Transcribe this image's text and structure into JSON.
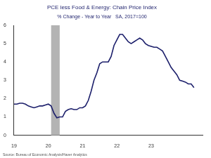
{
  "chart_data": {
    "type": "line",
    "title": "PCE less Food & Energy: Chain Price Index",
    "subtitle": "% Change - Year to Year   SA, 2017=100",
    "source": "Source: Bureau of Economic Analysis/Haver Analytics",
    "x": [
      2019,
      2019.083,
      2019.167,
      2019.25,
      2019.333,
      2019.417,
      2019.5,
      2019.583,
      2019.667,
      2019.75,
      2019.833,
      2019.917,
      2020,
      2020.083,
      2020.167,
      2020.25,
      2020.333,
      2020.417,
      2020.5,
      2020.583,
      2020.667,
      2020.75,
      2020.833,
      2020.917,
      2021,
      2021.083,
      2021.167,
      2021.25,
      2021.333,
      2021.417,
      2021.5,
      2021.583,
      2021.667,
      2021.75,
      2021.833,
      2021.917,
      2022,
      2022.083,
      2022.167,
      2022.25,
      2022.333,
      2022.417,
      2022.5,
      2022.583,
      2022.667,
      2022.75,
      2022.833,
      2022.917,
      2023,
      2023.083,
      2023.167,
      2023.25,
      2023.333,
      2023.417,
      2023.5,
      2023.583,
      2023.667,
      2023.75,
      2023.833,
      2023.917,
      2024,
      2024.083,
      2024.167,
      2024.25
    ],
    "values": [
      1.7,
      1.7,
      1.75,
      1.75,
      1.7,
      1.6,
      1.55,
      1.5,
      1.55,
      1.6,
      1.6,
      1.65,
      1.7,
      1.6,
      1.2,
      0.95,
      1.0,
      1.0,
      1.3,
      1.4,
      1.45,
      1.4,
      1.4,
      1.5,
      1.5,
      1.6,
      1.9,
      2.4,
      3.0,
      3.4,
      3.9,
      4.0,
      4.0,
      4.0,
      4.3,
      4.9,
      5.2,
      5.5,
      5.5,
      5.3,
      5.1,
      5.0,
      5.1,
      5.2,
      5.3,
      5.2,
      5.0,
      4.9,
      4.85,
      4.8,
      4.8,
      4.7,
      4.6,
      4.3,
      4.0,
      3.7,
      3.5,
      3.3,
      3.0,
      2.95,
      2.9,
      2.8,
      2.8,
      2.6
    ],
    "color": "#1c1f6b",
    "recession": [
      2020.083,
      2020.333
    ],
    "xlim": [
      2019,
      2024.5
    ],
    "xticks": [
      {
        "value": 2019,
        "label": "19"
      },
      {
        "value": 2020,
        "label": "20"
      },
      {
        "value": 2021,
        "label": "21"
      },
      {
        "value": 2022,
        "label": "22"
      },
      {
        "value": 2023,
        "label": "23"
      }
    ],
    "ylim": [
      0,
      6
    ],
    "yticks": [
      0,
      1,
      2,
      3,
      4,
      5,
      6
    ],
    "grid": false
  }
}
